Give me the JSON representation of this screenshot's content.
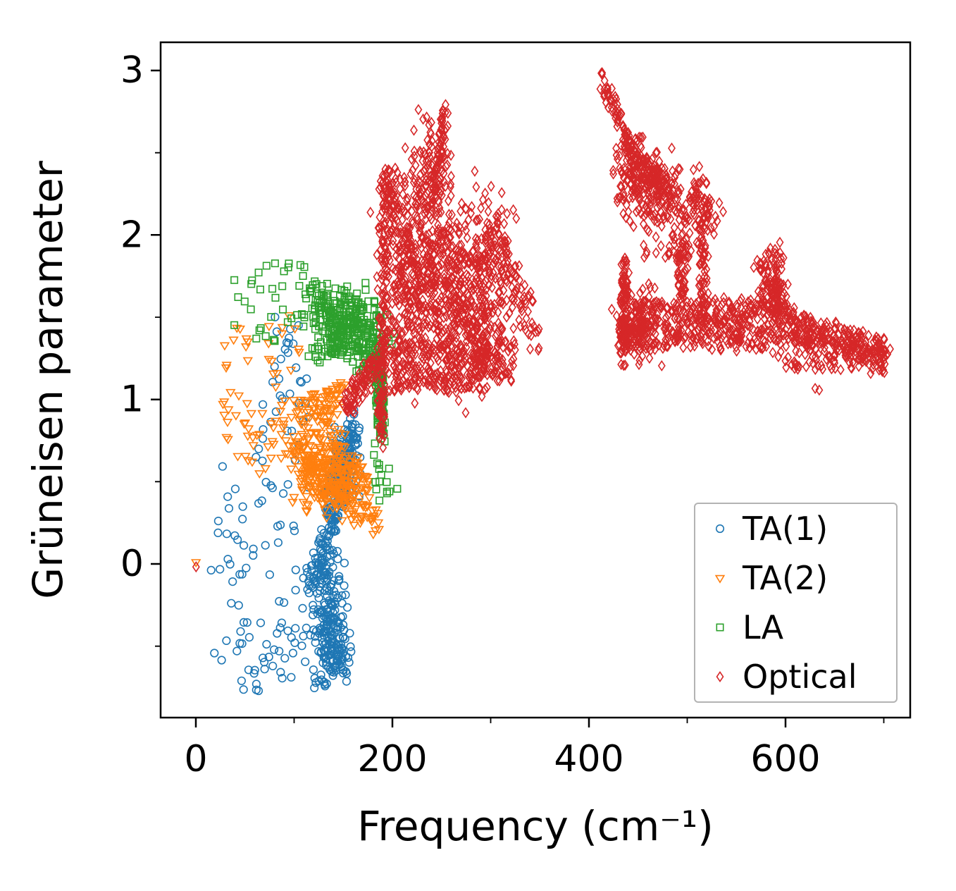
{
  "chart_data": {
    "type": "scatter",
    "title": "",
    "xlabel": "Frequency (cm⁻¹)",
    "ylabel": "Grüneisen parameter",
    "xlim": [
      -36,
      727
    ],
    "ylim": [
      -0.93,
      3.17
    ],
    "xticks": [
      "0",
      "200",
      "400",
      "600"
    ],
    "xtick_values": [
      0,
      200,
      400,
      600
    ],
    "yticks": [
      "0",
      "1",
      "2",
      "3"
    ],
    "ytick_values": [
      0,
      1,
      2,
      3
    ],
    "grid": false,
    "legend": {
      "position": "lower right",
      "border_color": "#b3b3b3",
      "background": "#ffffff"
    },
    "series": [
      {
        "name": "TA(1)",
        "marker": "circle",
        "color": "#1f77b4",
        "clusters": [
          {
            "type": "box",
            "x": [
              15,
              115
            ],
            "y": [
              -0.6,
              0.6
            ],
            "n": 60
          },
          {
            "type": "box",
            "x": [
              30,
              130
            ],
            "y": [
              -0.78,
              -0.35
            ],
            "n": 30
          },
          {
            "type": "box",
            "x": [
              60,
              115
            ],
            "y": [
              0.6,
              1.2
            ],
            "n": 25
          },
          {
            "type": "box",
            "x": [
              75,
              112
            ],
            "y": [
              1.2,
              1.52
            ],
            "n": 12
          },
          {
            "type": "blob",
            "cx": 135,
            "cy": -0.35,
            "sx": 9,
            "sy": 0.17,
            "n": 150
          },
          {
            "type": "blob",
            "cx": 142,
            "cy": -0.55,
            "sx": 7,
            "sy": 0.08,
            "n": 60
          },
          {
            "type": "line",
            "x1": 118,
            "y1": -0.15,
            "x2": 148,
            "y2": 0.45,
            "jx": 7,
            "jy": 0.1,
            "n": 110
          },
          {
            "type": "line",
            "x1": 135,
            "y1": 0.35,
            "x2": 163,
            "y2": 0.85,
            "jx": 7,
            "jy": 0.1,
            "n": 110
          },
          {
            "type": "blob",
            "cx": 150,
            "cy": 0.6,
            "sx": 8,
            "sy": 0.12,
            "n": 60
          }
        ]
      },
      {
        "name": "TA(2)",
        "marker": "triangle-down",
        "color": "#ff7f0e",
        "clusters": [
          {
            "type": "box",
            "x": [
              25,
              105
            ],
            "y": [
              0.85,
              1.45
            ],
            "n": 40
          },
          {
            "type": "box",
            "x": [
              28,
              95
            ],
            "y": [
              0.55,
              0.88
            ],
            "n": 25
          },
          {
            "type": "blob",
            "cx": 122,
            "cy": 0.62,
            "sx": 15,
            "sy": 0.13,
            "n": 210
          },
          {
            "type": "blob",
            "cx": 140,
            "cy": 0.48,
            "sx": 11,
            "sy": 0.1,
            "n": 100
          },
          {
            "type": "line",
            "x1": 110,
            "y1": 0.9,
            "x2": 155,
            "y2": 1.05,
            "jx": 10,
            "jy": 0.09,
            "n": 70
          },
          {
            "type": "line",
            "x1": 145,
            "y1": 0.45,
            "x2": 180,
            "y2": 0.25,
            "jx": 8,
            "jy": 0.07,
            "n": 55
          },
          {
            "type": "line",
            "x1": 150,
            "y1": 0.7,
            "x2": 175,
            "y2": 0.45,
            "jx": 6,
            "jy": 0.08,
            "n": 45
          },
          {
            "type": "box",
            "x": [
              90,
              98
            ],
            "y": [
              1.5,
              1.58
            ],
            "n": 1
          },
          {
            "type": "box",
            "x": [
              -1,
              1
            ],
            "y": [
              -0.02,
              0.02
            ],
            "n": 1
          }
        ]
      },
      {
        "name": "LA",
        "marker": "square",
        "color": "#2ca02c",
        "clusters": [
          {
            "type": "box",
            "x": [
              35,
              112
            ],
            "y": [
              1.35,
              1.86
            ],
            "n": 35
          },
          {
            "type": "blob",
            "cx": 148,
            "cy": 1.5,
            "sx": 16,
            "sy": 0.09,
            "n": 160
          },
          {
            "type": "blob",
            "cx": 172,
            "cy": 1.38,
            "sx": 11,
            "sy": 0.1,
            "n": 110
          },
          {
            "type": "line",
            "x1": 185,
            "y1": 1.32,
            "x2": 189,
            "y2": 0.78,
            "jx": 4,
            "jy": 0.06,
            "n": 100
          },
          {
            "type": "box",
            "x": [
              180,
              205
            ],
            "y": [
              0.38,
              0.75
            ],
            "n": 16
          },
          {
            "type": "line",
            "x1": 120,
            "y1": 1.28,
            "x2": 155,
            "y2": 1.38,
            "jx": 8,
            "jy": 0.07,
            "n": 50
          },
          {
            "type": "box",
            "x": [
              115,
              135
            ],
            "y": [
              1.55,
              1.72
            ],
            "n": 25
          }
        ]
      },
      {
        "name": "Optical",
        "marker": "diamond",
        "color": "#d62728",
        "clusters": [
          {
            "type": "line",
            "x1": 155,
            "y1": 0.95,
            "x2": 187,
            "y2": 1.27,
            "jx": 7,
            "jy": 0.07,
            "n": 100
          },
          {
            "type": "line",
            "x1": 188,
            "y1": 0.8,
            "x2": 193,
            "y2": 1.9,
            "jx": 4,
            "jy": 0.15,
            "n": 120
          },
          {
            "type": "blob",
            "cx": 195,
            "cy": 2.2,
            "sx": 5,
            "sy": 0.14,
            "n": 70
          },
          {
            "type": "blob",
            "cx": 215,
            "cy": 1.8,
            "sx": 13,
            "sy": 0.3,
            "n": 280
          },
          {
            "type": "blob",
            "cx": 245,
            "cy": 1.7,
            "sx": 17,
            "sy": 0.3,
            "n": 280
          },
          {
            "type": "blob",
            "cx": 240,
            "cy": 2.38,
            "sx": 9,
            "sy": 0.16,
            "n": 100
          },
          {
            "type": "line",
            "x1": 248,
            "y1": 2.45,
            "x2": 254,
            "y2": 2.77,
            "jx": 4,
            "jy": 0.06,
            "n": 35
          },
          {
            "type": "blob",
            "cx": 275,
            "cy": 1.55,
            "sx": 17,
            "sy": 0.24,
            "n": 240
          },
          {
            "type": "blob",
            "cx": 295,
            "cy": 1.8,
            "sx": 13,
            "sy": 0.22,
            "n": 120
          },
          {
            "type": "line",
            "x1": 300,
            "y1": 2.0,
            "x2": 340,
            "y2": 1.5,
            "jx": 8,
            "jy": 0.12,
            "n": 80
          },
          {
            "type": "box",
            "x": [
              280,
              325
            ],
            "y": [
              1.1,
              1.45
            ],
            "n": 90
          },
          {
            "type": "box",
            "x": [
              338,
              352
            ],
            "y": [
              1.3,
              1.45
            ],
            "n": 8
          },
          {
            "type": "box",
            "x": [
              196,
              260
            ],
            "y": [
              1.05,
              1.35
            ],
            "n": 120
          },
          {
            "type": "box",
            "x": [
              255,
              300
            ],
            "y": [
              1.05,
              1.35
            ],
            "n": 70
          },
          {
            "type": "line",
            "x1": 410,
            "y1": 3.0,
            "x2": 440,
            "y2": 2.55,
            "jx": 4,
            "jy": 0.07,
            "n": 60
          },
          {
            "type": "blob",
            "cx": 445,
            "cy": 2.38,
            "sx": 10,
            "sy": 0.13,
            "n": 130
          },
          {
            "type": "line",
            "x1": 450,
            "y1": 2.45,
            "x2": 490,
            "y2": 2.2,
            "jx": 9,
            "jy": 0.1,
            "n": 100
          },
          {
            "type": "blob",
            "cx": 470,
            "cy": 2.3,
            "sx": 10,
            "sy": 0.11,
            "n": 80
          },
          {
            "type": "box",
            "x": [
              455,
              500
            ],
            "y": [
              1.85,
              2.15
            ],
            "n": 35
          },
          {
            "type": "line",
            "x1": 434,
            "y1": 1.25,
            "x2": 437,
            "y2": 1.8,
            "jx": 4,
            "jy": 0.11,
            "n": 110
          },
          {
            "type": "blob",
            "cx": 450,
            "cy": 1.45,
            "sx": 10,
            "sy": 0.11,
            "n": 120
          },
          {
            "type": "box",
            "x": [
              440,
              530
            ],
            "y": [
              1.3,
              1.6
            ],
            "n": 200
          },
          {
            "type": "line",
            "x1": 490,
            "y1": 1.6,
            "x2": 500,
            "y2": 2.1,
            "jx": 6,
            "jy": 0.14,
            "n": 70
          },
          {
            "type": "blob",
            "cx": 512,
            "cy": 2.15,
            "sx": 9,
            "sy": 0.11,
            "n": 85
          },
          {
            "type": "line",
            "x1": 516,
            "y1": 1.45,
            "x2": 518,
            "y2": 2.0,
            "jx": 5,
            "jy": 0.14,
            "n": 60
          },
          {
            "type": "box",
            "x": [
              528,
              578
            ],
            "y": [
              1.28,
              1.62
            ],
            "n": 150
          },
          {
            "type": "blob",
            "cx": 586,
            "cy": 1.6,
            "sx": 8,
            "sy": 0.15,
            "n": 130
          },
          {
            "type": "line",
            "x1": 578,
            "y1": 1.82,
            "x2": 600,
            "y2": 1.5,
            "jx": 6,
            "jy": 0.1,
            "n": 50
          },
          {
            "type": "line",
            "x1": 598,
            "y1": 1.48,
            "x2": 700,
            "y2": 1.27,
            "jx": 10,
            "jy": 0.09,
            "n": 180
          },
          {
            "type": "box",
            "x": [
              600,
              680
            ],
            "y": [
              1.18,
              1.42
            ],
            "n": 120
          },
          {
            "type": "blob",
            "cx": 695,
            "cy": 1.26,
            "sx": 5,
            "sy": 0.05,
            "n": 35
          },
          {
            "type": "box",
            "x": [
              630,
              636
            ],
            "y": [
              1.05,
              1.09
            ],
            "n": 2
          },
          {
            "type": "box",
            "x": [
              -1,
              1
            ],
            "y": [
              -0.02,
              0.02
            ],
            "n": 1
          }
        ]
      }
    ]
  }
}
